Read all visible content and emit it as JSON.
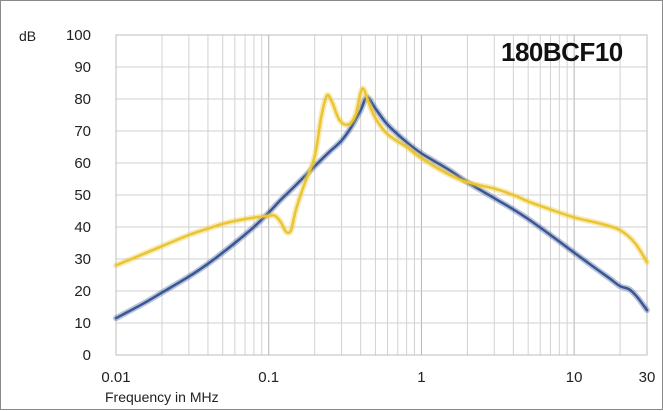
{
  "chart_data": {
    "type": "line",
    "title": "180BCF10",
    "xlabel": "Frequency in MHz",
    "ylabel": "dB",
    "x_scale": "log",
    "xlim": [
      0.01,
      30
    ],
    "ylim": [
      0,
      100
    ],
    "grid": true,
    "x_ticks": [
      {
        "value": 0.01,
        "label": "0.01"
      },
      {
        "value": 0.1,
        "label": "0.1"
      },
      {
        "value": 1,
        "label": "1"
      },
      {
        "value": 10,
        "label": "10"
      },
      {
        "value": 30,
        "label": "30"
      }
    ],
    "y_ticks": [
      {
        "value": 0,
        "label": "0"
      },
      {
        "value": 10,
        "label": "10"
      },
      {
        "value": 20,
        "label": "20"
      },
      {
        "value": 30,
        "label": "30"
      },
      {
        "value": 40,
        "label": "40"
      },
      {
        "value": 50,
        "label": "50"
      },
      {
        "value": 60,
        "label": "60"
      },
      {
        "value": 70,
        "label": "70"
      },
      {
        "value": 80,
        "label": "80"
      },
      {
        "value": 90,
        "label": "90"
      },
      {
        "value": 100,
        "label": "100"
      }
    ],
    "series": [
      {
        "color": "#3a5694",
        "points": [
          [
            0.01,
            11.5
          ],
          [
            0.015,
            16
          ],
          [
            0.02,
            19.5
          ],
          [
            0.03,
            24.5
          ],
          [
            0.04,
            28.5
          ],
          [
            0.05,
            32
          ],
          [
            0.06,
            35
          ],
          [
            0.08,
            40
          ],
          [
            0.1,
            44.5
          ],
          [
            0.12,
            48.5
          ],
          [
            0.15,
            53
          ],
          [
            0.2,
            59
          ],
          [
            0.25,
            63.5
          ],
          [
            0.3,
            67
          ],
          [
            0.35,
            71.5
          ],
          [
            0.4,
            76.5
          ],
          [
            0.44,
            80.5
          ],
          [
            0.5,
            77
          ],
          [
            0.6,
            72
          ],
          [
            0.8,
            66.5
          ],
          [
            1,
            63
          ],
          [
            1.5,
            58
          ],
          [
            2,
            54
          ],
          [
            3,
            49
          ],
          [
            4,
            45.5
          ],
          [
            5,
            42.5
          ],
          [
            7,
            37.5
          ],
          [
            10,
            32
          ],
          [
            13,
            28
          ],
          [
            17,
            24
          ],
          [
            20,
            21.5
          ],
          [
            23,
            20.5
          ],
          [
            26,
            18
          ],
          [
            30,
            14
          ]
        ]
      },
      {
        "color": "#ebc531",
        "points": [
          [
            0.01,
            28
          ],
          [
            0.015,
            31.5
          ],
          [
            0.02,
            34
          ],
          [
            0.03,
            37.5
          ],
          [
            0.04,
            39.5
          ],
          [
            0.05,
            41
          ],
          [
            0.07,
            42.5
          ],
          [
            0.1,
            43.5
          ],
          [
            0.11,
            43.5
          ],
          [
            0.12,
            41.5
          ],
          [
            0.13,
            38.5
          ],
          [
            0.14,
            39
          ],
          [
            0.15,
            45
          ],
          [
            0.17,
            53
          ],
          [
            0.2,
            62
          ],
          [
            0.22,
            74
          ],
          [
            0.24,
            81
          ],
          [
            0.26,
            79
          ],
          [
            0.29,
            73.5
          ],
          [
            0.33,
            72
          ],
          [
            0.37,
            75
          ],
          [
            0.4,
            82
          ],
          [
            0.42,
            83
          ],
          [
            0.45,
            79
          ],
          [
            0.5,
            74
          ],
          [
            0.6,
            69
          ],
          [
            0.8,
            65
          ],
          [
            1,
            61.5
          ],
          [
            1.5,
            56.5
          ],
          [
            2,
            54
          ],
          [
            3,
            52
          ],
          [
            4,
            50
          ],
          [
            5,
            48
          ],
          [
            7,
            45.5
          ],
          [
            10,
            43
          ],
          [
            15,
            41
          ],
          [
            20,
            39
          ],
          [
            25,
            35
          ],
          [
            30,
            29
          ]
        ]
      }
    ]
  }
}
